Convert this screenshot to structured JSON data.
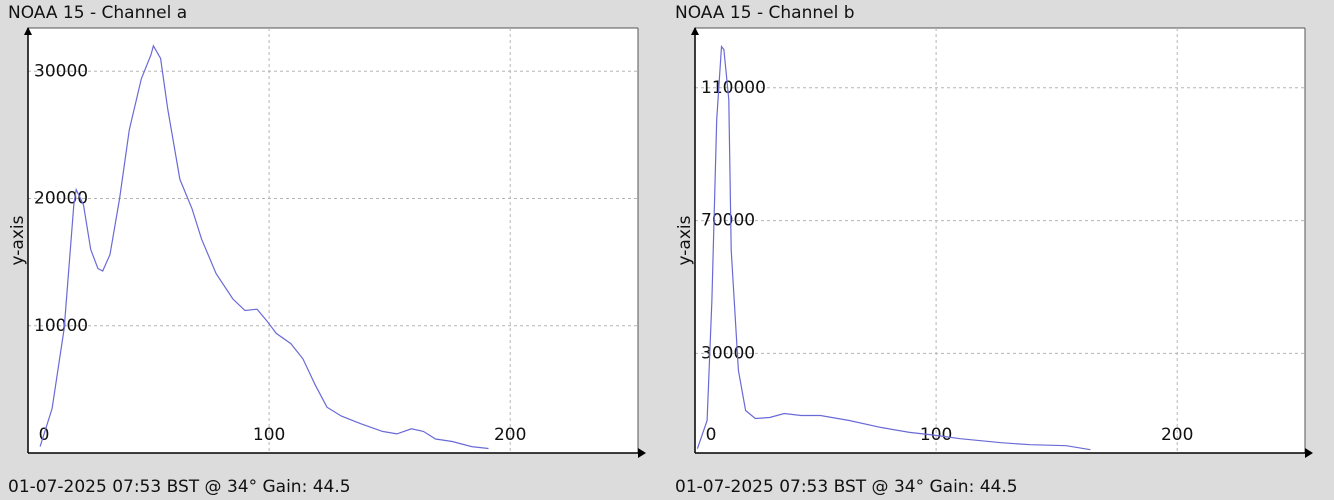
{
  "chart_data": [
    {
      "type": "line",
      "title": "NOAA 15 - Channel a",
      "ylabel": "y-axis",
      "caption": "01-07-2025 07:53 BST @ 34° Gain: 44.5",
      "color": "#6a6ad6",
      "grid": true,
      "xlim": [
        0,
        253
      ],
      "xticks": [
        0,
        100,
        200
      ],
      "ylim": [
        0,
        33400
      ],
      "yticks": [
        10000,
        20000,
        30000
      ],
      "x": [
        5,
        10,
        15,
        19,
        20,
        23,
        26,
        29,
        31,
        34,
        38,
        42,
        47,
        51,
        52,
        55,
        58,
        63,
        68,
        72,
        78,
        85,
        90,
        95,
        99,
        103,
        109,
        114,
        119,
        124,
        130,
        138,
        147,
        153,
        159,
        164,
        169,
        176,
        184,
        191
      ],
      "values": [
        500,
        3500,
        9800,
        19500,
        20700,
        19500,
        16000,
        14500,
        14300,
        15600,
        20000,
        25400,
        29400,
        31300,
        32000,
        31000,
        27000,
        21500,
        19200,
        16800,
        14100,
        12100,
        11200,
        11300,
        10400,
        9400,
        8600,
        7400,
        5400,
        3600,
        2900,
        2300,
        1700,
        1500,
        1900,
        1700,
        1100,
        900,
        500,
        350
      ]
    },
    {
      "type": "line",
      "title": "NOAA 15 - Channel b",
      "ylabel": "y-axis",
      "caption": "01-07-2025 07:53 BST @ 34° Gain: 44.5",
      "color": "#6a6ad6",
      "grid": true,
      "xlim": [
        0,
        253
      ],
      "xticks": [
        0,
        100,
        200
      ],
      "ylim": [
        0,
        128000
      ],
      "yticks": [
        30000,
        70000,
        110000
      ],
      "x": [
        1,
        5,
        7,
        9,
        11,
        12,
        14,
        15,
        18,
        21,
        25,
        31,
        37,
        44,
        52,
        64,
        77,
        89,
        100,
        110,
        127,
        139,
        154,
        164
      ],
      "values": [
        1300,
        9800,
        46000,
        100300,
        122400,
        121500,
        106400,
        61100,
        24900,
        12800,
        10400,
        10700,
        11900,
        11300,
        11300,
        9800,
        7700,
        6200,
        5300,
        4300,
        3100,
        2500,
        2200,
        1000
      ]
    }
  ]
}
